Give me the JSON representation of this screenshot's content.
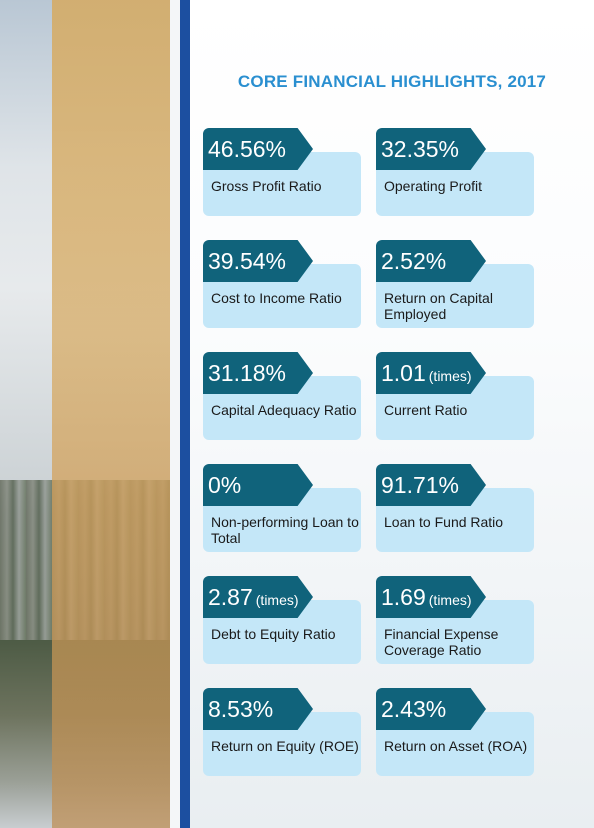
{
  "title": "CORE FINANCIAL HIGHLIGHTS, 2017",
  "cards": [
    {
      "value": "46.56%",
      "unit": "",
      "label": "Gross Profit Ratio"
    },
    {
      "value": "32.35%",
      "unit": "",
      "label": "Operating Profit"
    },
    {
      "value": "39.54%",
      "unit": "",
      "label": "Cost to Income Ratio"
    },
    {
      "value": "2.52%",
      "unit": "",
      "label": "Return on Capital Employed"
    },
    {
      "value": "31.18%",
      "unit": "",
      "label": "Capital Adequacy Ratio"
    },
    {
      "value": "1.01",
      "unit": "(times)",
      "label": "Current Ratio"
    },
    {
      "value": "0%",
      "unit": "",
      "label": "Non-performing Loan to Total"
    },
    {
      "value": "91.71%",
      "unit": "",
      "label": "Loan to Fund Ratio"
    },
    {
      "value": "2.87",
      "unit": "(times)",
      "label": "Debt to Equity Ratio"
    },
    {
      "value": "1.69",
      "unit": "(times)",
      "label": "Financial Expense Coverage Ratio"
    },
    {
      "value": "8.53%",
      "unit": "",
      "label": "Return on Equity (ROE)"
    },
    {
      "value": "2.43%",
      "unit": "",
      "label": "Return on Asset (ROA)"
    }
  ],
  "colors": {
    "title": "#2a8fd0",
    "tab": "#10637b",
    "card": "#c4e7f8",
    "accent_bar": "#1c4fa0"
  }
}
